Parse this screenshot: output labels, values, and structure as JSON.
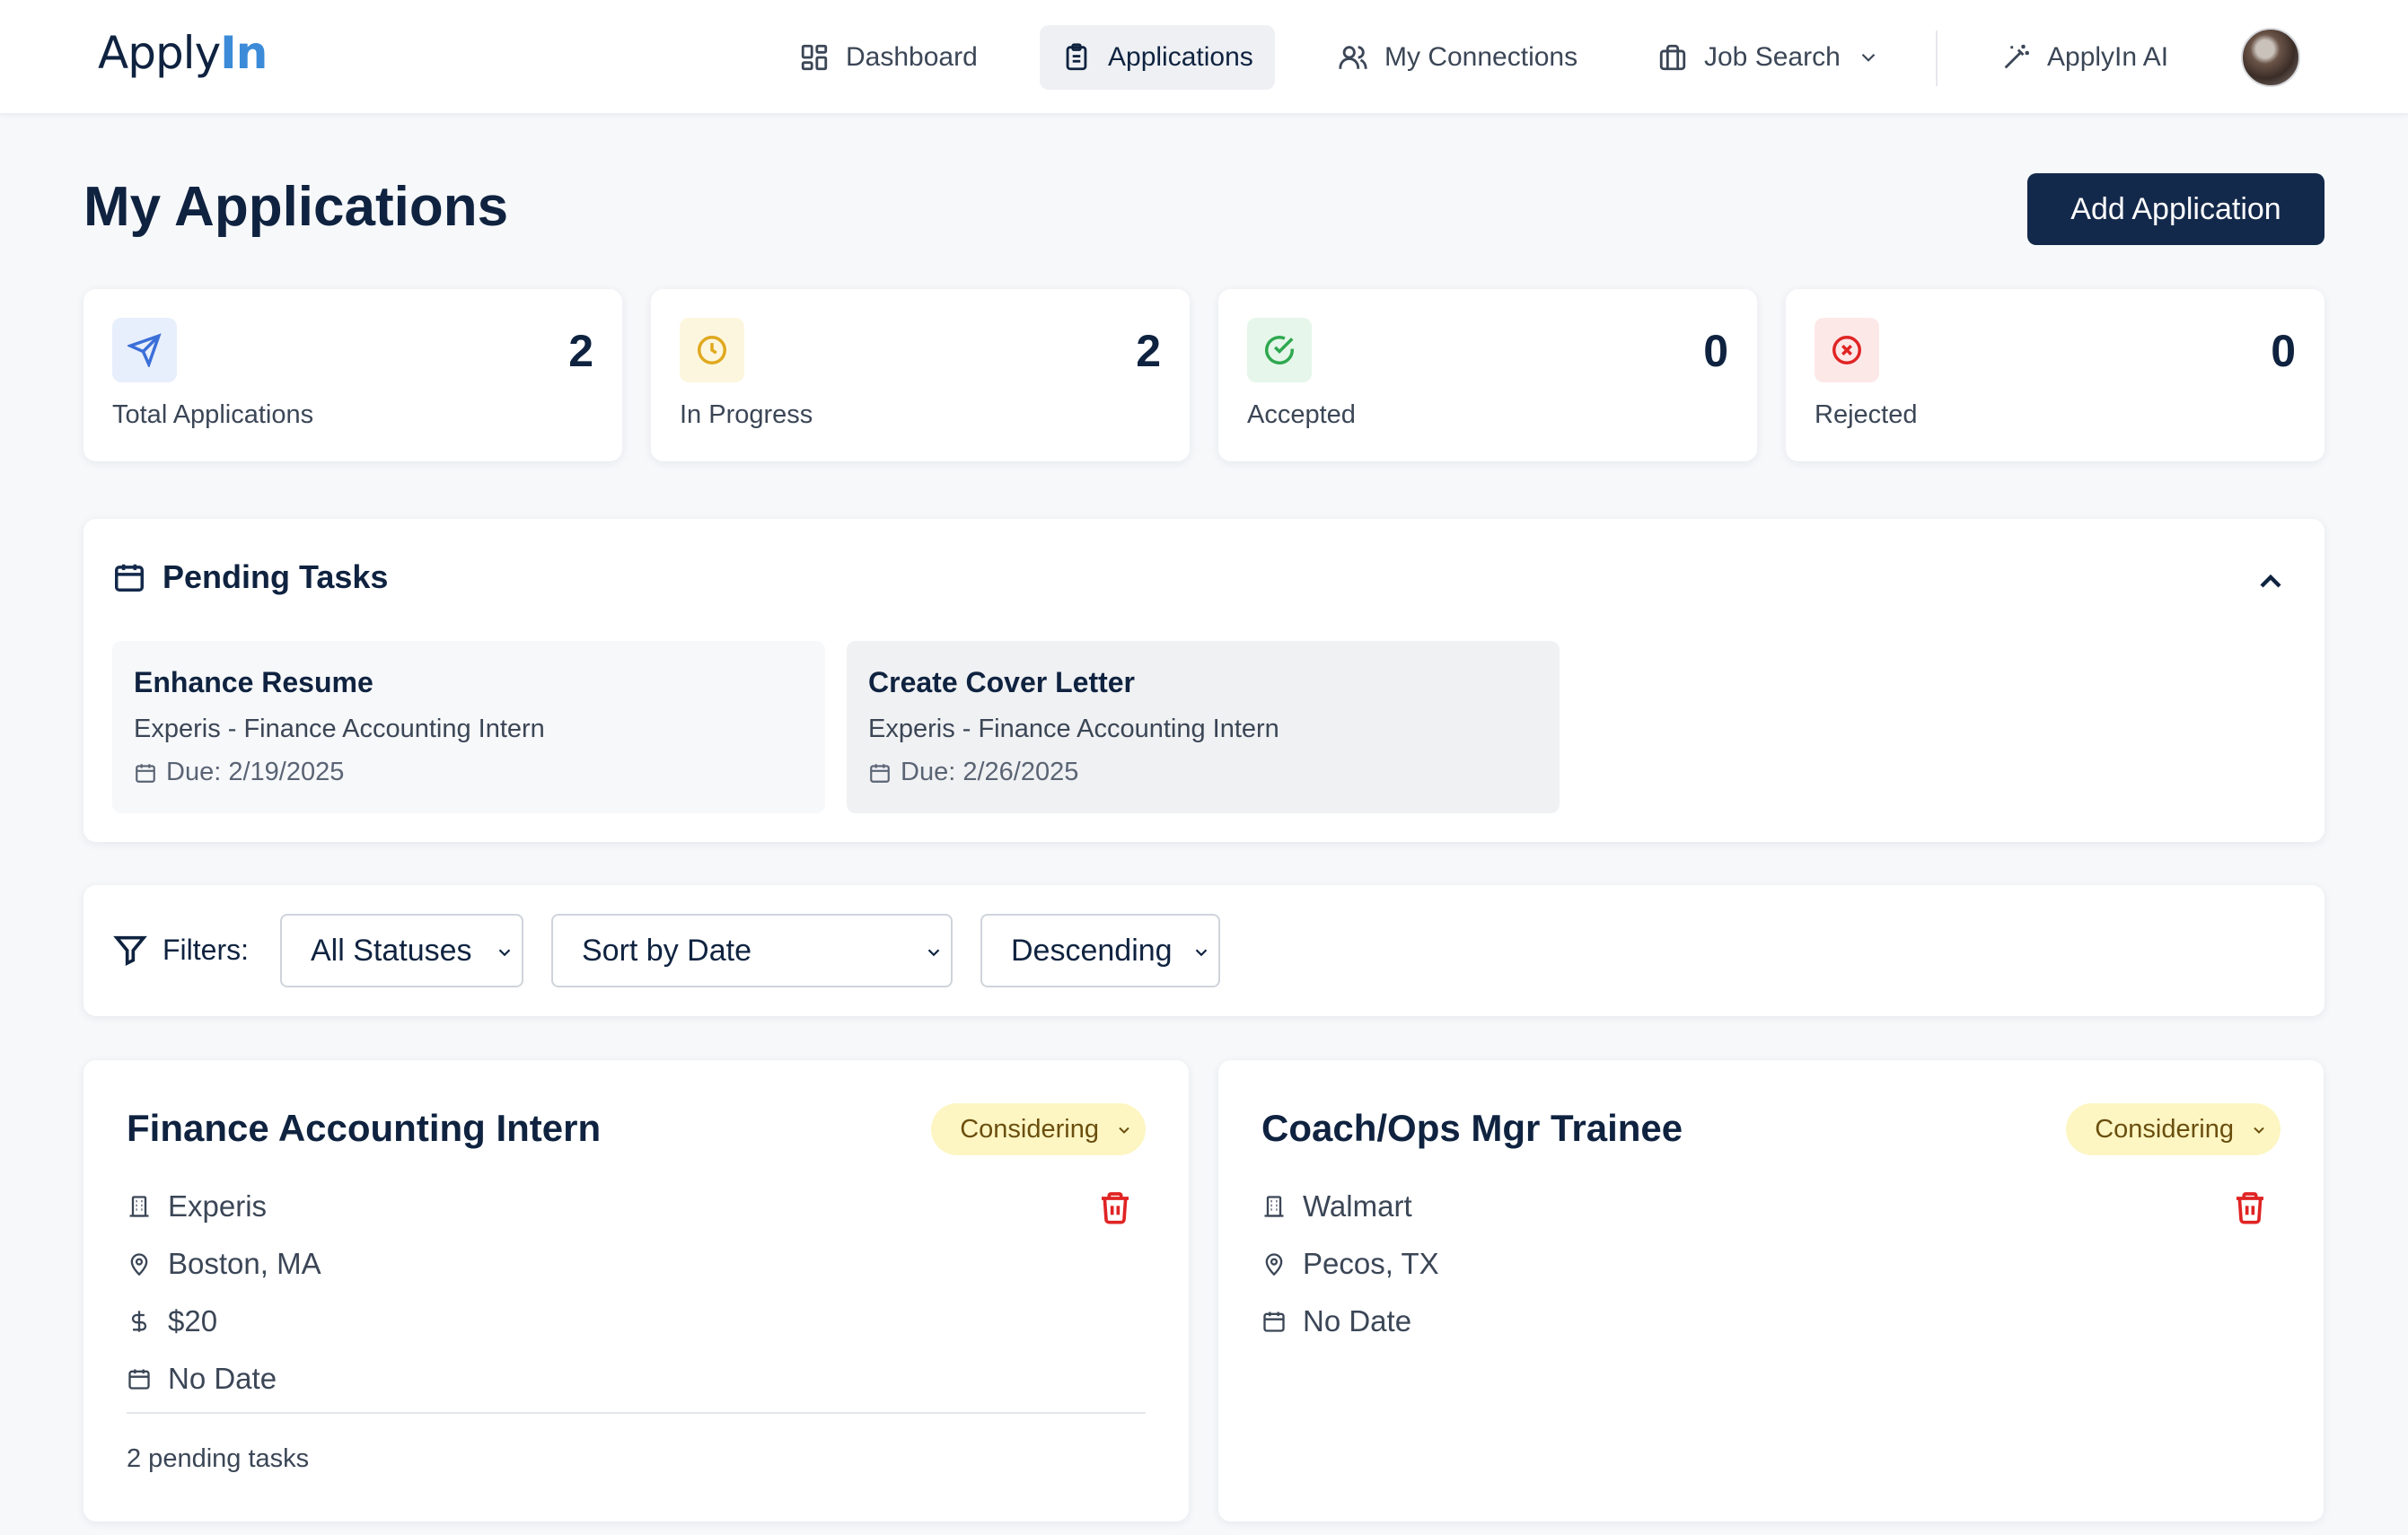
{
  "nav": {
    "logo_main": "Apply",
    "logo_accent": "In",
    "items": [
      {
        "label": "Dashboard",
        "icon": "grid-icon"
      },
      {
        "label": "Applications",
        "icon": "clipboard-icon"
      },
      {
        "label": "My Connections",
        "icon": "users-icon"
      },
      {
        "label": "Job Search",
        "icon": "briefcase-icon"
      },
      {
        "label": "ApplyIn AI",
        "icon": "magic-wand-icon"
      }
    ],
    "active": "Applications"
  },
  "header": {
    "title": "My Applications",
    "add_button": "Add Application"
  },
  "stats": [
    {
      "label": "Total Applications",
      "value": "2",
      "icon": "send-icon",
      "color": "#3b6fd9",
      "bg": "#e8effc"
    },
    {
      "label": "In Progress",
      "value": "2",
      "icon": "clock-icon",
      "color": "#e0a81e",
      "bg": "#fdf6de"
    },
    {
      "label": "Accepted",
      "value": "0",
      "icon": "check-circle-icon",
      "color": "#2fa84f",
      "bg": "#e6f6ea"
    },
    {
      "label": "Rejected",
      "value": "0",
      "icon": "x-circle-icon",
      "color": "#e02424",
      "bg": "#fde8e8"
    }
  ],
  "pending_tasks": {
    "title": "Pending Tasks",
    "tasks": [
      {
        "title": "Enhance Resume",
        "subtitle": "Experis - Finance Accounting Intern",
        "due": "Due: 2/19/2025"
      },
      {
        "title": "Create Cover Letter",
        "subtitle": "Experis - Finance Accounting Intern",
        "due": "Due: 2/26/2025"
      }
    ]
  },
  "filters": {
    "label": "Filters:",
    "status": "All Statuses",
    "sort": "Sort by Date",
    "order": "Descending"
  },
  "applications": [
    {
      "title": "Finance Accounting Intern",
      "status": "Considering",
      "company": "Experis",
      "location": "Boston, MA",
      "salary": "$20",
      "date": "No Date",
      "pending": "2 pending tasks"
    },
    {
      "title": "Coach/Ops Mgr Trainee",
      "status": "Considering",
      "company": "Walmart",
      "location": "Pecos, TX",
      "date": "No Date"
    }
  ]
}
